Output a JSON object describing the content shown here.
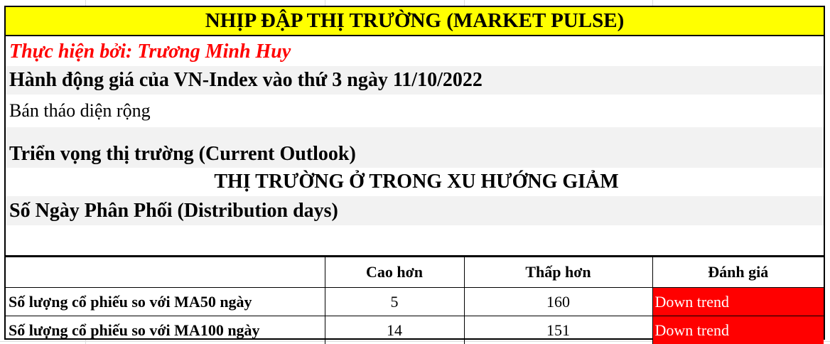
{
  "header": {
    "title": "NHỊP ĐẬP THỊ TRƯỜNG (MARKET PULSE)"
  },
  "author": "Thực hiện bởi: Trương Minh Huy",
  "price_action": {
    "heading": "Hành động giá của VN-Index vào thứ 3 ngày 11/10/2022",
    "text": "Bán tháo diện rộng"
  },
  "outlook": {
    "heading": "Triển vọng thị trường (Current Outlook)",
    "status": "THỊ TRƯỜNG Ở TRONG XU HƯỚNG GIẢM"
  },
  "distribution": {
    "heading": "Số Ngày Phân Phối (Distribution days)"
  },
  "table": {
    "columns": [
      "",
      "Cao hơn",
      "Thấp hơn",
      "Đánh giá"
    ],
    "rows": [
      {
        "label": "Số lượng cổ phiếu so với MA50 ngày",
        "above": "5",
        "below": "160",
        "rating": "Down trend"
      },
      {
        "label": "Số lượng cổ phiếu so với MA100 ngày",
        "above": "14",
        "below": "151",
        "rating": "Down trend"
      }
    ]
  },
  "colors": {
    "title_bg": "#ffff00",
    "author": "#ff0000",
    "down_trend_bg": "#ff0000",
    "band": "#f2f2f2"
  }
}
